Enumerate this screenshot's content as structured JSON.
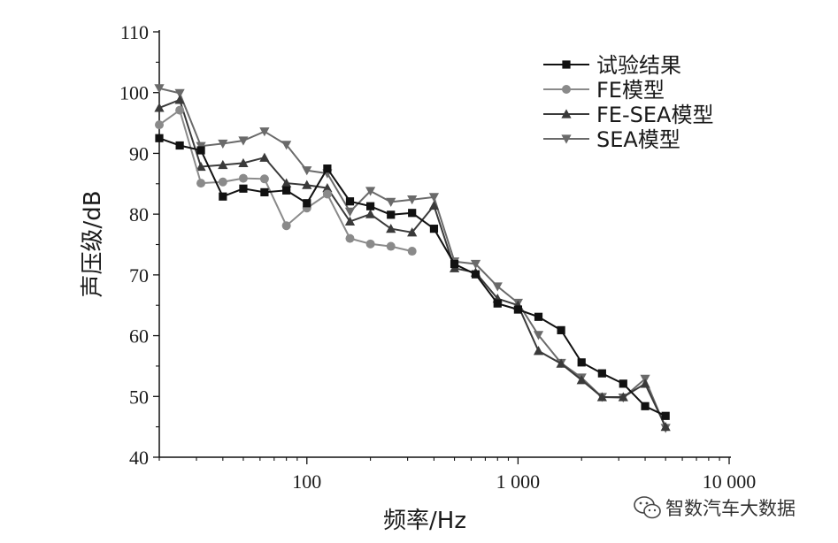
{
  "chart_data": {
    "type": "line",
    "title": "",
    "xlabel": "频率/Hz",
    "ylabel": "声压级/dB",
    "xscale": "log",
    "xlim": [
      20,
      10000
    ],
    "ylim": [
      40,
      110
    ],
    "x_ticks": [
      100,
      1000,
      10000
    ],
    "x_tick_labels": [
      "100",
      "1 000",
      "10 000"
    ],
    "y_ticks": [
      40,
      50,
      60,
      70,
      80,
      90,
      100,
      110
    ],
    "y_tick_labels": [
      "40",
      "50",
      "60",
      "70",
      "80",
      "90",
      "100",
      "110"
    ],
    "grid": false,
    "legend_position": "top-right",
    "series": [
      {
        "name": "试验结果",
        "color": "#111111",
        "marker": "square",
        "x": [
          20,
          25,
          31.5,
          40,
          50,
          63,
          80,
          100,
          125,
          160,
          200,
          250,
          315,
          400,
          500,
          630,
          800,
          1000,
          1250,
          1600,
          2000,
          2500,
          3150,
          4000,
          5000
        ],
        "y": [
          92.5,
          91.3,
          90.5,
          82.9,
          84.2,
          83.6,
          83.9,
          81.8,
          87.5,
          82.1,
          81.3,
          79.9,
          80.2,
          77.6,
          71.8,
          70.1,
          65.3,
          64.3,
          63.1,
          60.9,
          55.6,
          53.8,
          52.1,
          48.4,
          46.8
        ]
      },
      {
        "name": "FE模型",
        "color": "#8a8a8a",
        "marker": "circle",
        "x": [
          20,
          25,
          31.5,
          40,
          50,
          63,
          80,
          100,
          125,
          160,
          200,
          250,
          315
        ],
        "y": [
          94.7,
          97.1,
          85.1,
          85.3,
          85.9,
          85.8,
          78.1,
          81.0,
          83.3,
          76.0,
          75.1,
          74.7,
          73.9
        ]
      },
      {
        "name": "FE-SEA模型",
        "color": "#3a3a3a",
        "marker": "triangle-up",
        "x": [
          20,
          25,
          31.5,
          40,
          50,
          63,
          80,
          100,
          125,
          160,
          200,
          250,
          315,
          400,
          500,
          630,
          800,
          1000,
          1250,
          1600,
          2000,
          2500,
          3150,
          4000,
          5000
        ],
        "y": [
          97.5,
          98.8,
          87.8,
          88.1,
          88.4,
          89.3,
          85.1,
          84.8,
          84.3,
          78.8,
          80.0,
          77.6,
          77.0,
          81.4,
          71.1,
          70.4,
          66.1,
          65.0,
          57.5,
          55.4,
          52.7,
          49.9,
          49.9,
          52.1,
          45.0
        ]
      },
      {
        "name": "SEA模型",
        "color": "#6a6a6a",
        "marker": "triangle-down",
        "x": [
          20,
          25,
          31.5,
          40,
          50,
          63,
          80,
          100,
          125,
          160,
          200,
          250,
          315,
          400,
          500,
          630,
          800,
          1000,
          1250,
          1600,
          2000,
          2500,
          3150,
          4000,
          5000
        ],
        "y": [
          100.7,
          99.9,
          91.2,
          91.6,
          92.1,
          93.6,
          91.4,
          87.2,
          86.7,
          80.4,
          83.8,
          82.0,
          82.4,
          82.8,
          72.2,
          71.8,
          68.1,
          65.4,
          60.1,
          55.5,
          53.1,
          49.9,
          49.8,
          52.9,
          44.8
        ]
      }
    ]
  },
  "watermark": {
    "text": "智数汽车大数据",
    "icon": "wechat-icon"
  }
}
